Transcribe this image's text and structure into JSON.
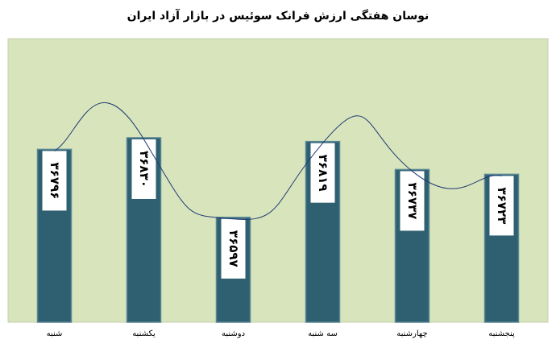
{
  "chart_data": {
    "type": "bar",
    "title": "نوسان هفتگی ارزش  فرانک سوئیس در بازار آزاد ایران",
    "categories": [
      "شنبه",
      "یکشنبه",
      "دوشنبه",
      "سه شنبه",
      "چهارشنبه",
      "پنجشنبه"
    ],
    "values": [
      36796,
      36830,
      36597,
      36819,
      36737,
      36723
    ],
    "value_labels": [
      "۳۶۷۹۶",
      "۳۶۸۳۰",
      "۳۶۵۹۷",
      "۳۶۸۱۹",
      "۳۶۷۳۷",
      "۳۶۷۲۳"
    ],
    "color": "#2e6071",
    "line_color": "#1f3b73",
    "ylim": [
      36290,
      37120
    ]
  }
}
